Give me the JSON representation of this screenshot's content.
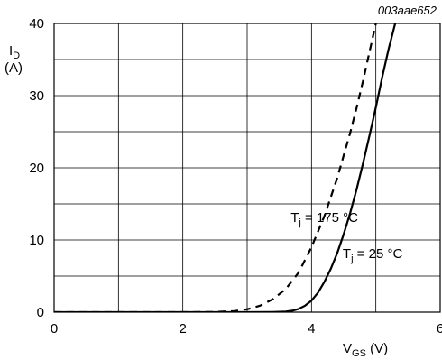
{
  "chart_data": {
    "type": "line",
    "reference_code": "003aae652",
    "ylabel": {
      "symbol": "I",
      "subscript": "D",
      "unit": "(A)"
    },
    "xlabel": {
      "symbol": "V",
      "subscript": "GS",
      "unit": " (V)"
    },
    "xlim": [
      0,
      6
    ],
    "ylim": [
      0,
      40
    ],
    "x_ticks": [
      0,
      2,
      4,
      6
    ],
    "y_ticks": [
      0,
      10,
      20,
      30,
      40
    ],
    "x_minor_step": 1,
    "y_minor_step": 5,
    "grid": true,
    "series": [
      {
        "name": {
          "symbol": "T",
          "subscript": "j",
          "rest": " = 25 °C"
        },
        "line_style": "solid",
        "x": [
          0.0,
          1.0,
          2.0,
          3.0,
          3.4,
          3.6,
          3.7,
          3.8,
          3.9,
          4.0,
          4.1,
          4.2,
          4.3,
          4.4,
          4.5,
          4.6,
          4.7,
          4.8,
          4.9,
          5.0,
          5.1,
          5.2,
          5.3,
          5.35
        ],
        "values": [
          0,
          0,
          0,
          0,
          0.02,
          0.08,
          0.2,
          0.45,
          0.9,
          1.6,
          2.7,
          4.2,
          6.0,
          8.2,
          10.8,
          13.7,
          17.0,
          20.6,
          24.4,
          28.4,
          32.6,
          36.5,
          40.0,
          41.5
        ]
      },
      {
        "name": {
          "symbol": "T",
          "subscript": "j",
          "rest": " = 175 °C"
        },
        "line_style": "dashed",
        "x": [
          0.0,
          1.0,
          2.0,
          2.5,
          2.8,
          3.0,
          3.2,
          3.4,
          3.6,
          3.8,
          4.0,
          4.2,
          4.4,
          4.6,
          4.7,
          4.8,
          4.9,
          5.0,
          5.1
        ],
        "values": [
          0,
          0,
          0,
          0.02,
          0.15,
          0.4,
          0.9,
          1.8,
          3.2,
          5.5,
          9.0,
          13.3,
          18.6,
          24.8,
          28.3,
          32.0,
          36.0,
          40.0,
          42.5
        ]
      }
    ],
    "annotations": [
      {
        "series": 1,
        "x": 4.2,
        "y": 12.5
      },
      {
        "series": 0,
        "x": 4.95,
        "y": 7.5
      }
    ]
  }
}
